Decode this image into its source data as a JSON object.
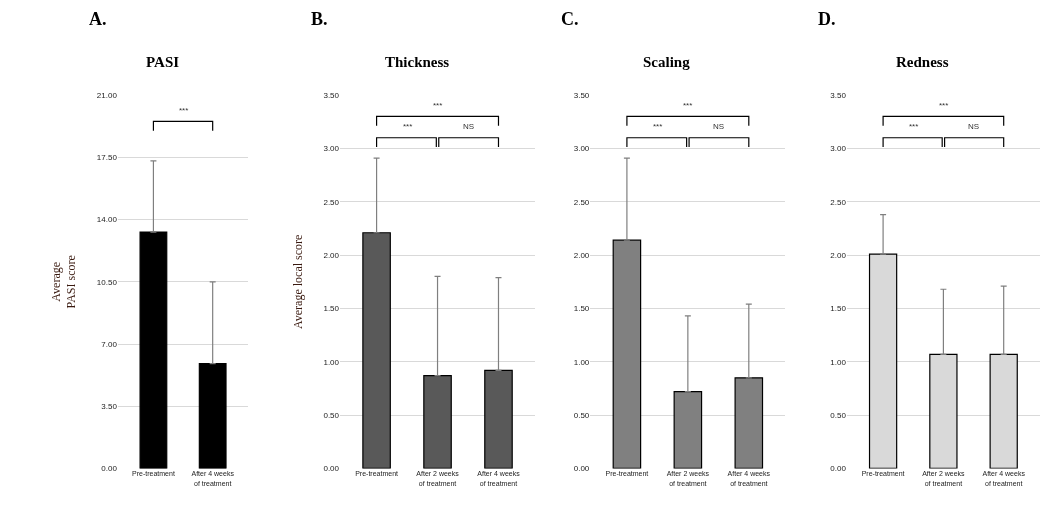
{
  "chart_data": [
    {
      "type": "bar",
      "title": "A.",
      "subtitle": "PASI",
      "ylabel": "Average PASI score",
      "categories": [
        "Pre-treatment",
        "After 4 weeks of treatment"
      ],
      "values": [
        13.3,
        5.9
      ],
      "errors": [
        [
          13.3,
          17.3
        ],
        [
          5.9,
          10.5
        ]
      ],
      "color": "#000000",
      "ylim": [
        0,
        21
      ],
      "yticks": [
        {
          "value": 0,
          "label": "0.00"
        },
        {
          "value": 3.5,
          "label": "3.50"
        },
        {
          "value": 7,
          "label": "7.00"
        },
        {
          "value": 10.5,
          "label": "10.50"
        },
        {
          "value": 14,
          "label": "14.00"
        },
        {
          "value": 17.5,
          "label": "17.50"
        },
        {
          "value": 21,
          "label": "21.00"
        }
      ],
      "grid": "y",
      "annotations": [
        "***"
      ]
    },
    {
      "type": "bar",
      "title": "B.",
      "subtitle": "Thickness",
      "ylabel": "Average local score",
      "categories": [
        "Pre-treatment",
        "After 2 weeks of treatment",
        "After 4 weeks of treatment"
      ],
      "values": [
        2.21,
        0.87,
        0.92
      ],
      "errors": [
        [
          2.21,
          2.91
        ],
        [
          0.87,
          1.8
        ],
        [
          0.92,
          1.79
        ]
      ],
      "color": "#595959",
      "ylim": [
        0,
        3.5
      ],
      "yticks": [
        {
          "value": 0,
          "label": "0.00"
        },
        {
          "value": 0.5,
          "label": "0.50"
        },
        {
          "value": 1,
          "label": "1.00"
        },
        {
          "value": 1.5,
          "label": "1.50"
        },
        {
          "value": 2,
          "label": "2.00"
        },
        {
          "value": 2.5,
          "label": "2.50"
        },
        {
          "value": 3,
          "label": "3.00"
        },
        {
          "value": 3.5,
          "label": "3.50"
        }
      ],
      "grid": "y",
      "annotations": [
        "***",
        "***",
        "NS"
      ]
    },
    {
      "type": "bar",
      "title": "C.",
      "subtitle": "Scaling",
      "categories": [
        "Pre-treatment",
        "After 2 weeks of treatment",
        "After 4 weeks of treatment"
      ],
      "values": [
        2.14,
        0.72,
        0.85
      ],
      "errors": [
        [
          2.14,
          2.91
        ],
        [
          0.72,
          1.43
        ],
        [
          0.85,
          1.54
        ]
      ],
      "color": "#808080",
      "ylim": [
        0,
        3.5
      ],
      "yticks": [
        {
          "value": 0,
          "label": "0.00"
        },
        {
          "value": 0.5,
          "label": "0.50"
        },
        {
          "value": 1,
          "label": "1.00"
        },
        {
          "value": 1.5,
          "label": "1.50"
        },
        {
          "value": 2,
          "label": "2.00"
        },
        {
          "value": 2.5,
          "label": "2.50"
        },
        {
          "value": 3,
          "label": "3.00"
        },
        {
          "value": 3.5,
          "label": "3.50"
        }
      ],
      "grid": "y",
      "annotations": [
        "***",
        "***",
        "NS"
      ]
    },
    {
      "type": "bar",
      "title": "D.",
      "subtitle": "Redness",
      "categories": [
        "Pre-treatment",
        "After 2 weeks of treatment",
        "After 4 weeks of treatment"
      ],
      "values": [
        2.01,
        1.07,
        1.07
      ],
      "errors": [
        [
          2.01,
          2.38
        ],
        [
          1.07,
          1.68
        ],
        [
          1.07,
          1.71
        ]
      ],
      "color": "#d9d9d9",
      "ylim": [
        0,
        3.5
      ],
      "yticks": [
        {
          "value": 0,
          "label": "0.00"
        },
        {
          "value": 0.5,
          "label": "0.50"
        },
        {
          "value": 1,
          "label": "1.00"
        },
        {
          "value": 1.5,
          "label": "1.50"
        },
        {
          "value": 2,
          "label": "2.00"
        },
        {
          "value": 2.5,
          "label": "2.50"
        },
        {
          "value": 3,
          "label": "3.00"
        },
        {
          "value": 3.5,
          "label": "3.50"
        }
      ],
      "grid": "y",
      "annotations": [
        "***",
        "***",
        "NS"
      ]
    }
  ]
}
